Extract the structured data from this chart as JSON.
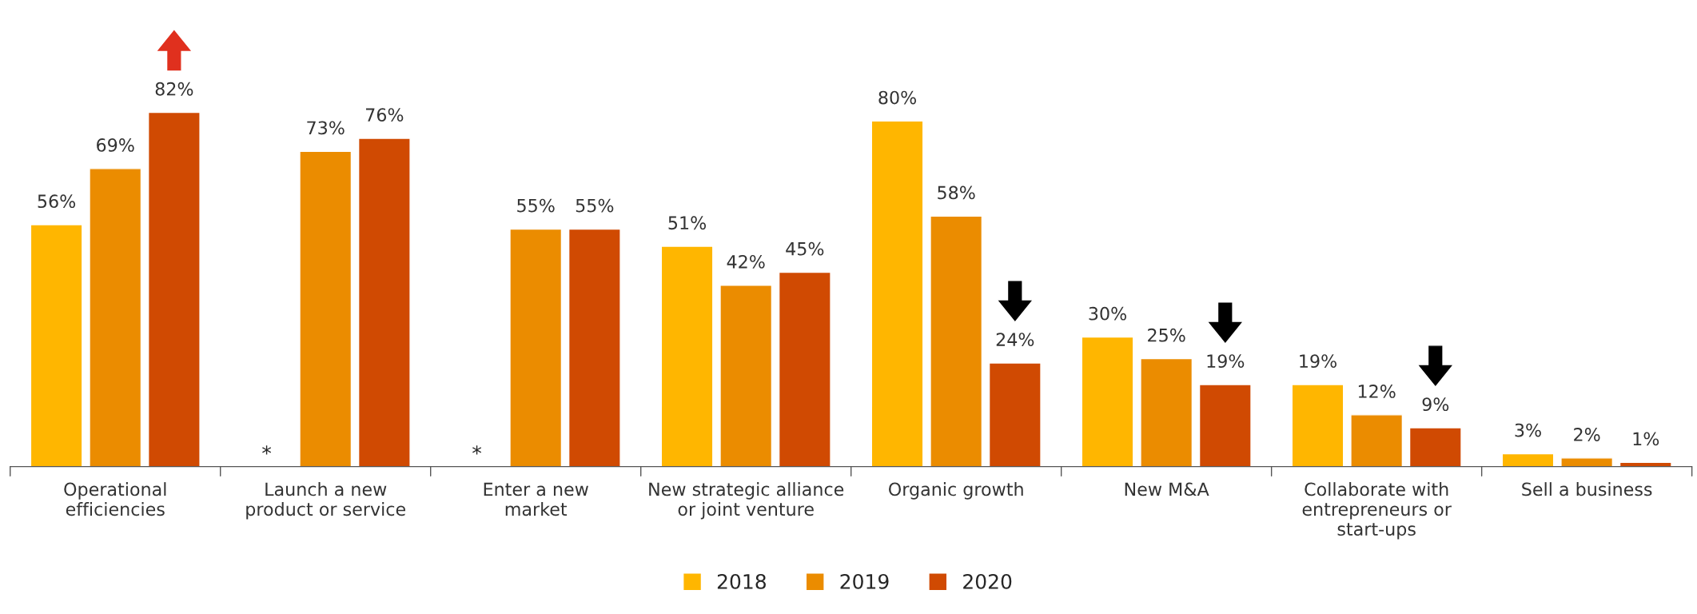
{
  "chart_data": {
    "type": "bar",
    "categories": [
      "Operational\nefficiencies",
      "Launch a new\nproduct or service",
      "Enter a new\nmarket",
      "New strategic alliance\nor joint venture",
      "Organic growth",
      "New M&A",
      "Collaborate with\nentrepreneurs or\nstart-ups",
      "Sell a business"
    ],
    "series": [
      {
        "name": "2018",
        "color": "#ffb600",
        "values": [
          56,
          null,
          null,
          51,
          80,
          30,
          19,
          3
        ],
        "value_labels": [
          "56%",
          null,
          null,
          "51%",
          "80%",
          "30%",
          "19%",
          "3%"
        ]
      },
      {
        "name": "2019",
        "color": "#eb8c00",
        "values": [
          69,
          73,
          55,
          42,
          58,
          25,
          12,
          2
        ],
        "value_labels": [
          "69%",
          "73%",
          "55%",
          "42%",
          "58%",
          "25%",
          "12%",
          "2%"
        ]
      },
      {
        "name": "2020",
        "color": "#d04a02",
        "values": [
          82,
          76,
          55,
          45,
          24,
          19,
          9,
          1
        ],
        "value_labels": [
          "82%",
          "76%",
          "55%",
          "45%",
          "24%",
          "19%",
          "9%",
          "1%"
        ]
      }
    ],
    "legend": "bottom",
    "annotations": [
      {
        "text": "*",
        "x": "Launch a new\nproduct or service",
        "y": 0
      },
      {
        "text": "*",
        "x": "Enter a new\nmarket",
        "y": 0
      }
    ]
  }
}
